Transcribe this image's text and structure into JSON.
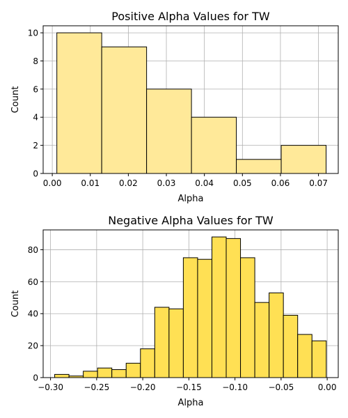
{
  "chart_data": [
    {
      "type": "bar",
      "title": "Positive Alpha Values for TW",
      "xlabel": "Alpha",
      "ylabel": "Count",
      "bar_color": "#ffe999",
      "xlim": [
        -0.0024,
        0.0752
      ],
      "ylim": [
        0,
        10.5
      ],
      "xticks": [
        0.0,
        0.01,
        0.02,
        0.03,
        0.04,
        0.05,
        0.06,
        0.07
      ],
      "xtick_labels": [
        "0.00",
        "0.01",
        "0.02",
        "0.03",
        "0.04",
        "0.05",
        "0.06",
        "0.07"
      ],
      "yticks": [
        0,
        2,
        4,
        6,
        8,
        10
      ],
      "ytick_labels": [
        "0",
        "2",
        "4",
        "6",
        "8",
        "10"
      ],
      "grid": true,
      "bins": [
        {
          "x0": 0.0012,
          "x1": 0.013,
          "value": 10
        },
        {
          "x0": 0.013,
          "x1": 0.0248,
          "value": 9
        },
        {
          "x0": 0.0248,
          "x1": 0.0366,
          "value": 6
        },
        {
          "x0": 0.0366,
          "x1": 0.0484,
          "value": 4
        },
        {
          "x0": 0.0484,
          "x1": 0.0602,
          "value": 1
        },
        {
          "x0": 0.0602,
          "x1": 0.072,
          "value": 2
        }
      ]
    },
    {
      "type": "bar",
      "title": "Negative Alpha Values for TW",
      "xlabel": "Alpha",
      "ylabel": "Count",
      "bar_color": "#ffe054",
      "xlim": [
        -0.308,
        0.012
      ],
      "ylim": [
        0,
        92.4
      ],
      "xticks": [
        -0.3,
        -0.25,
        -0.2,
        -0.15,
        -0.1,
        -0.05,
        0.0
      ],
      "xtick_labels": [
        "−0.30",
        "−0.25",
        "−0.20",
        "−0.15",
        "−0.10",
        "−0.05",
        "0.00"
      ],
      "yticks": [
        0,
        20,
        40,
        60,
        80
      ],
      "ytick_labels": [
        "0",
        "20",
        "40",
        "60",
        "80"
      ],
      "grid": true,
      "bins": [
        {
          "x0": -0.2955,
          "x1": -0.28,
          "value": 2
        },
        {
          "x0": -0.28,
          "x1": -0.2645,
          "value": 1
        },
        {
          "x0": -0.2645,
          "x1": -0.249,
          "value": 4
        },
        {
          "x0": -0.249,
          "x1": -0.2335,
          "value": 6
        },
        {
          "x0": -0.2335,
          "x1": -0.218,
          "value": 5
        },
        {
          "x0": -0.218,
          "x1": -0.2025,
          "value": 9
        },
        {
          "x0": -0.2025,
          "x1": -0.187,
          "value": 18
        },
        {
          "x0": -0.187,
          "x1": -0.1715,
          "value": 44
        },
        {
          "x0": -0.1715,
          "x1": -0.156,
          "value": 43
        },
        {
          "x0": -0.156,
          "x1": -0.1405,
          "value": 75
        },
        {
          "x0": -0.1405,
          "x1": -0.125,
          "value": 74
        },
        {
          "x0": -0.125,
          "x1": -0.1095,
          "value": 88
        },
        {
          "x0": -0.1095,
          "x1": -0.094,
          "value": 87
        },
        {
          "x0": -0.094,
          "x1": -0.0785,
          "value": 75
        },
        {
          "x0": -0.0785,
          "x1": -0.063,
          "value": 47
        },
        {
          "x0": -0.063,
          "x1": -0.0475,
          "value": 53
        },
        {
          "x0": -0.0475,
          "x1": -0.032,
          "value": 39
        },
        {
          "x0": -0.032,
          "x1": -0.0165,
          "value": 27
        },
        {
          "x0": -0.0165,
          "x1": -0.001,
          "value": 23
        }
      ]
    }
  ]
}
